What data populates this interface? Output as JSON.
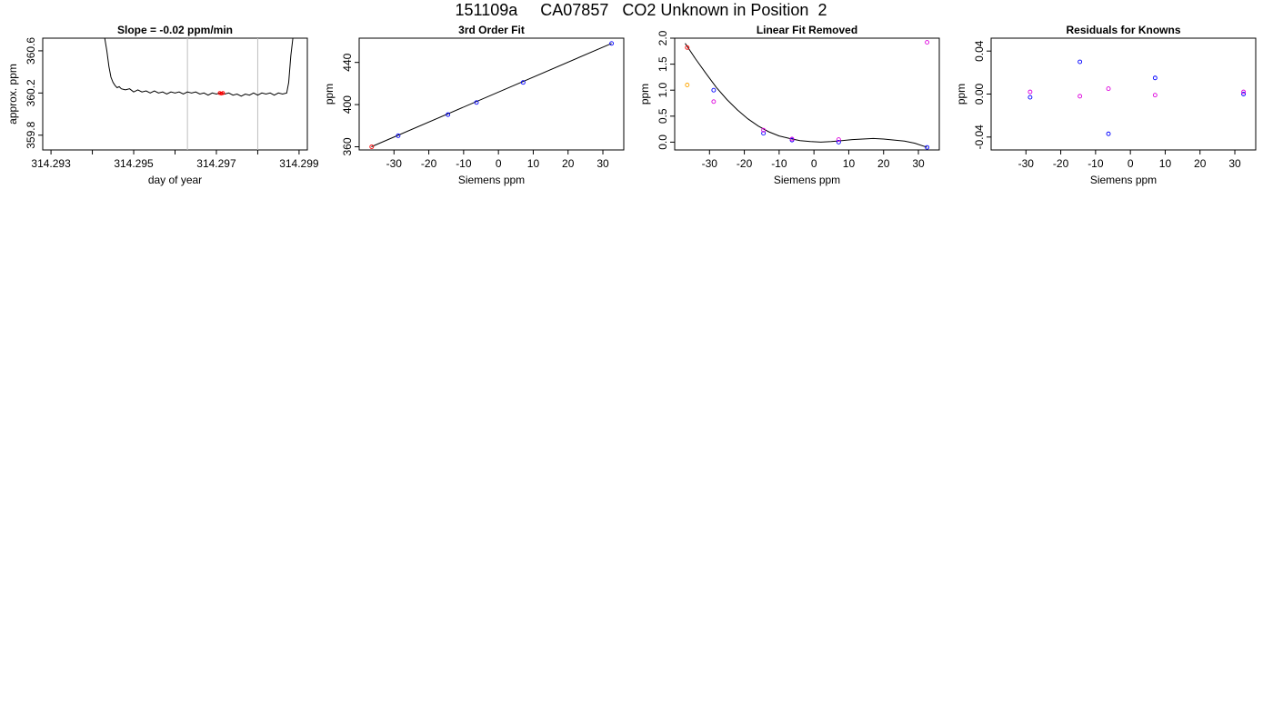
{
  "page_title": "151109a     CA07857   CO2 Unknown in Position  2",
  "chart_data": [
    {
      "type": "line",
      "title": "Slope =  -0.02  ppm/min",
      "xlabel": "day of year",
      "ylabel": "approx. ppm",
      "xlim": [
        314.2928,
        314.2992
      ],
      "ylim": [
        359.66,
        360.72
      ],
      "xticks": [
        314.293,
        314.294,
        314.295,
        314.296,
        314.297,
        314.298,
        314.299
      ],
      "xtick_labels": [
        "314.293",
        "",
        "314.295",
        "",
        "314.297",
        "",
        "314.299"
      ],
      "yticks": [
        359.8,
        360.2,
        360.6
      ],
      "ytick_labels": [
        "359.8",
        "360.2",
        "360.6"
      ],
      "vlines": [
        314.2963,
        314.298
      ],
      "vline_color": "#bebebe",
      "line_color": "#000000",
      "marker_color": "#ff0000",
      "series": [
        {
          "x": [
            314.2943,
            314.29435,
            314.2944,
            314.29445,
            314.2945,
            314.29455,
            314.2946,
            314.29465,
            314.2947,
            314.2948,
            314.2949,
            314.295,
            314.2951,
            314.2952,
            314.2953,
            314.2954,
            314.2955,
            314.2956,
            314.2957,
            314.2958,
            314.2959,
            314.296,
            314.2961,
            314.2962,
            314.2963,
            314.2964,
            314.2965,
            314.2966,
            314.2967,
            314.2968,
            314.2969,
            314.297,
            314.2971,
            314.2972,
            314.2973,
            314.2974,
            314.2975,
            314.2976,
            314.2977,
            314.2978,
            314.2979,
            314.298,
            314.2981,
            314.2982,
            314.2983,
            314.2984,
            314.2985,
            314.2986,
            314.2987,
            314.29875,
            314.2988,
            314.29885
          ],
          "y": [
            360.72,
            360.6,
            360.45,
            360.35,
            360.3,
            360.27,
            360.25,
            360.26,
            360.24,
            360.23,
            360.24,
            360.21,
            360.23,
            360.21,
            360.22,
            360.2,
            360.22,
            360.2,
            360.21,
            360.19,
            360.21,
            360.2,
            360.21,
            360.19,
            360.21,
            360.2,
            360.21,
            360.19,
            360.2,
            360.18,
            360.2,
            360.19,
            360.2,
            360.19,
            360.2,
            360.18,
            360.19,
            360.17,
            360.19,
            360.18,
            360.2,
            360.18,
            360.2,
            360.19,
            360.2,
            360.18,
            360.2,
            360.19,
            360.2,
            360.3,
            360.55,
            360.72
          ]
        }
      ],
      "markers": [
        {
          "x": 314.29708,
          "y": 360.2
        },
        {
          "x": 314.29712,
          "y": 360.195
        },
        {
          "x": 314.29716,
          "y": 360.2
        }
      ]
    },
    {
      "type": "scatter",
      "title": "3rd Order Fit",
      "xlabel": "Siemens ppm",
      "ylabel": "ppm",
      "xlim": [
        -40,
        36
      ],
      "ylim": [
        357,
        463
      ],
      "xticks": [
        -30,
        -20,
        -10,
        0,
        10,
        20,
        30
      ],
      "xtick_labels": [
        "-30",
        "-20",
        "-10",
        "0",
        "10",
        "20",
        "30"
      ],
      "yticks": [
        360,
        400,
        440
      ],
      "ytick_labels": [
        "360",
        "400",
        "440"
      ],
      "fit_line": {
        "x": [
          -36.5,
          32.5
        ],
        "y": [
          360,
          458
        ],
        "color": "#000000"
      },
      "series": [
        {
          "color": "#0000ff",
          "x": [
            -28.8,
            -14.5,
            -6.3,
            7.1,
            32.5
          ],
          "y": [
            370.5,
            390.5,
            402.0,
            421.0,
            458.0
          ]
        },
        {
          "color": "#ff0000",
          "x": [
            -36.4
          ],
          "y": [
            360.0
          ]
        }
      ]
    },
    {
      "type": "scatter",
      "title": "Linear Fit Removed",
      "xlabel": "Siemens ppm",
      "ylabel": "ppm",
      "xlim": [
        -40,
        36
      ],
      "ylim": [
        -0.15,
        2.0
      ],
      "xticks": [
        -30,
        -20,
        -10,
        0,
        10,
        20,
        30
      ],
      "xtick_labels": [
        "-30",
        "-20",
        "-10",
        "0",
        "10",
        "20",
        "30"
      ],
      "yticks": [
        0.0,
        0.5,
        1.0,
        1.5,
        2.0
      ],
      "ytick_labels": [
        "0.0",
        "0.5",
        "1.0",
        "1.5",
        "2.0"
      ],
      "fit_curve": {
        "color": "#000000",
        "x": [
          -37,
          -34,
          -31,
          -28,
          -25,
          -22,
          -19,
          -16,
          -13,
          -10,
          -7,
          -4,
          -1,
          2,
          5,
          8,
          11,
          14,
          17,
          20,
          23,
          26,
          29,
          32.5
        ],
        "y": [
          1.9,
          1.6,
          1.32,
          1.05,
          0.82,
          0.62,
          0.45,
          0.31,
          0.2,
          0.12,
          0.07,
          0.03,
          0.01,
          0.0,
          0.01,
          0.03,
          0.05,
          0.06,
          0.07,
          0.06,
          0.04,
          0.02,
          -0.02,
          -0.1
        ]
      },
      "series": [
        {
          "color": "#0000ff",
          "x": [
            -28.8,
            -14.5,
            -6.3,
            7.1,
            32.5
          ],
          "y": [
            1.0,
            0.17,
            0.04,
            0.0,
            -0.1
          ]
        },
        {
          "color": "#dd00dd",
          "x": [
            -28.8,
            -14.5,
            -6.3,
            7.1,
            32.5
          ],
          "y": [
            0.78,
            0.23,
            0.06,
            0.05,
            1.92
          ]
        },
        {
          "color": "#ff0000",
          "x": [
            -36.4
          ],
          "y": [
            1.82
          ]
        },
        {
          "color": "#ffa500",
          "x": [
            -36.4
          ],
          "y": [
            1.1
          ]
        }
      ]
    },
    {
      "type": "scatter",
      "title": "Residuals for Knowns",
      "xlabel": "Siemens ppm",
      "ylabel": "ppm",
      "xlim": [
        -40,
        36
      ],
      "ylim": [
        -0.052,
        0.052
      ],
      "xticks": [
        -30,
        -20,
        -10,
        0,
        10,
        20,
        30
      ],
      "xtick_labels": [
        "-30",
        "-20",
        "-10",
        "0",
        "10",
        "20",
        "30"
      ],
      "yticks": [
        -0.04,
        0.0,
        0.04
      ],
      "ytick_labels": [
        "-0.04",
        "0.00",
        "0.04"
      ],
      "series": [
        {
          "color": "#0000ff",
          "x": [
            -28.8,
            -14.5,
            -6.3,
            7.1,
            32.5
          ],
          "y": [
            -0.003,
            0.03,
            -0.037,
            0.015,
            0.0
          ]
        },
        {
          "color": "#dd00dd",
          "x": [
            -28.8,
            -14.5,
            -6.3,
            7.1,
            32.5
          ],
          "y": [
            0.002,
            -0.002,
            0.005,
            -0.001,
            0.002
          ]
        }
      ]
    }
  ]
}
